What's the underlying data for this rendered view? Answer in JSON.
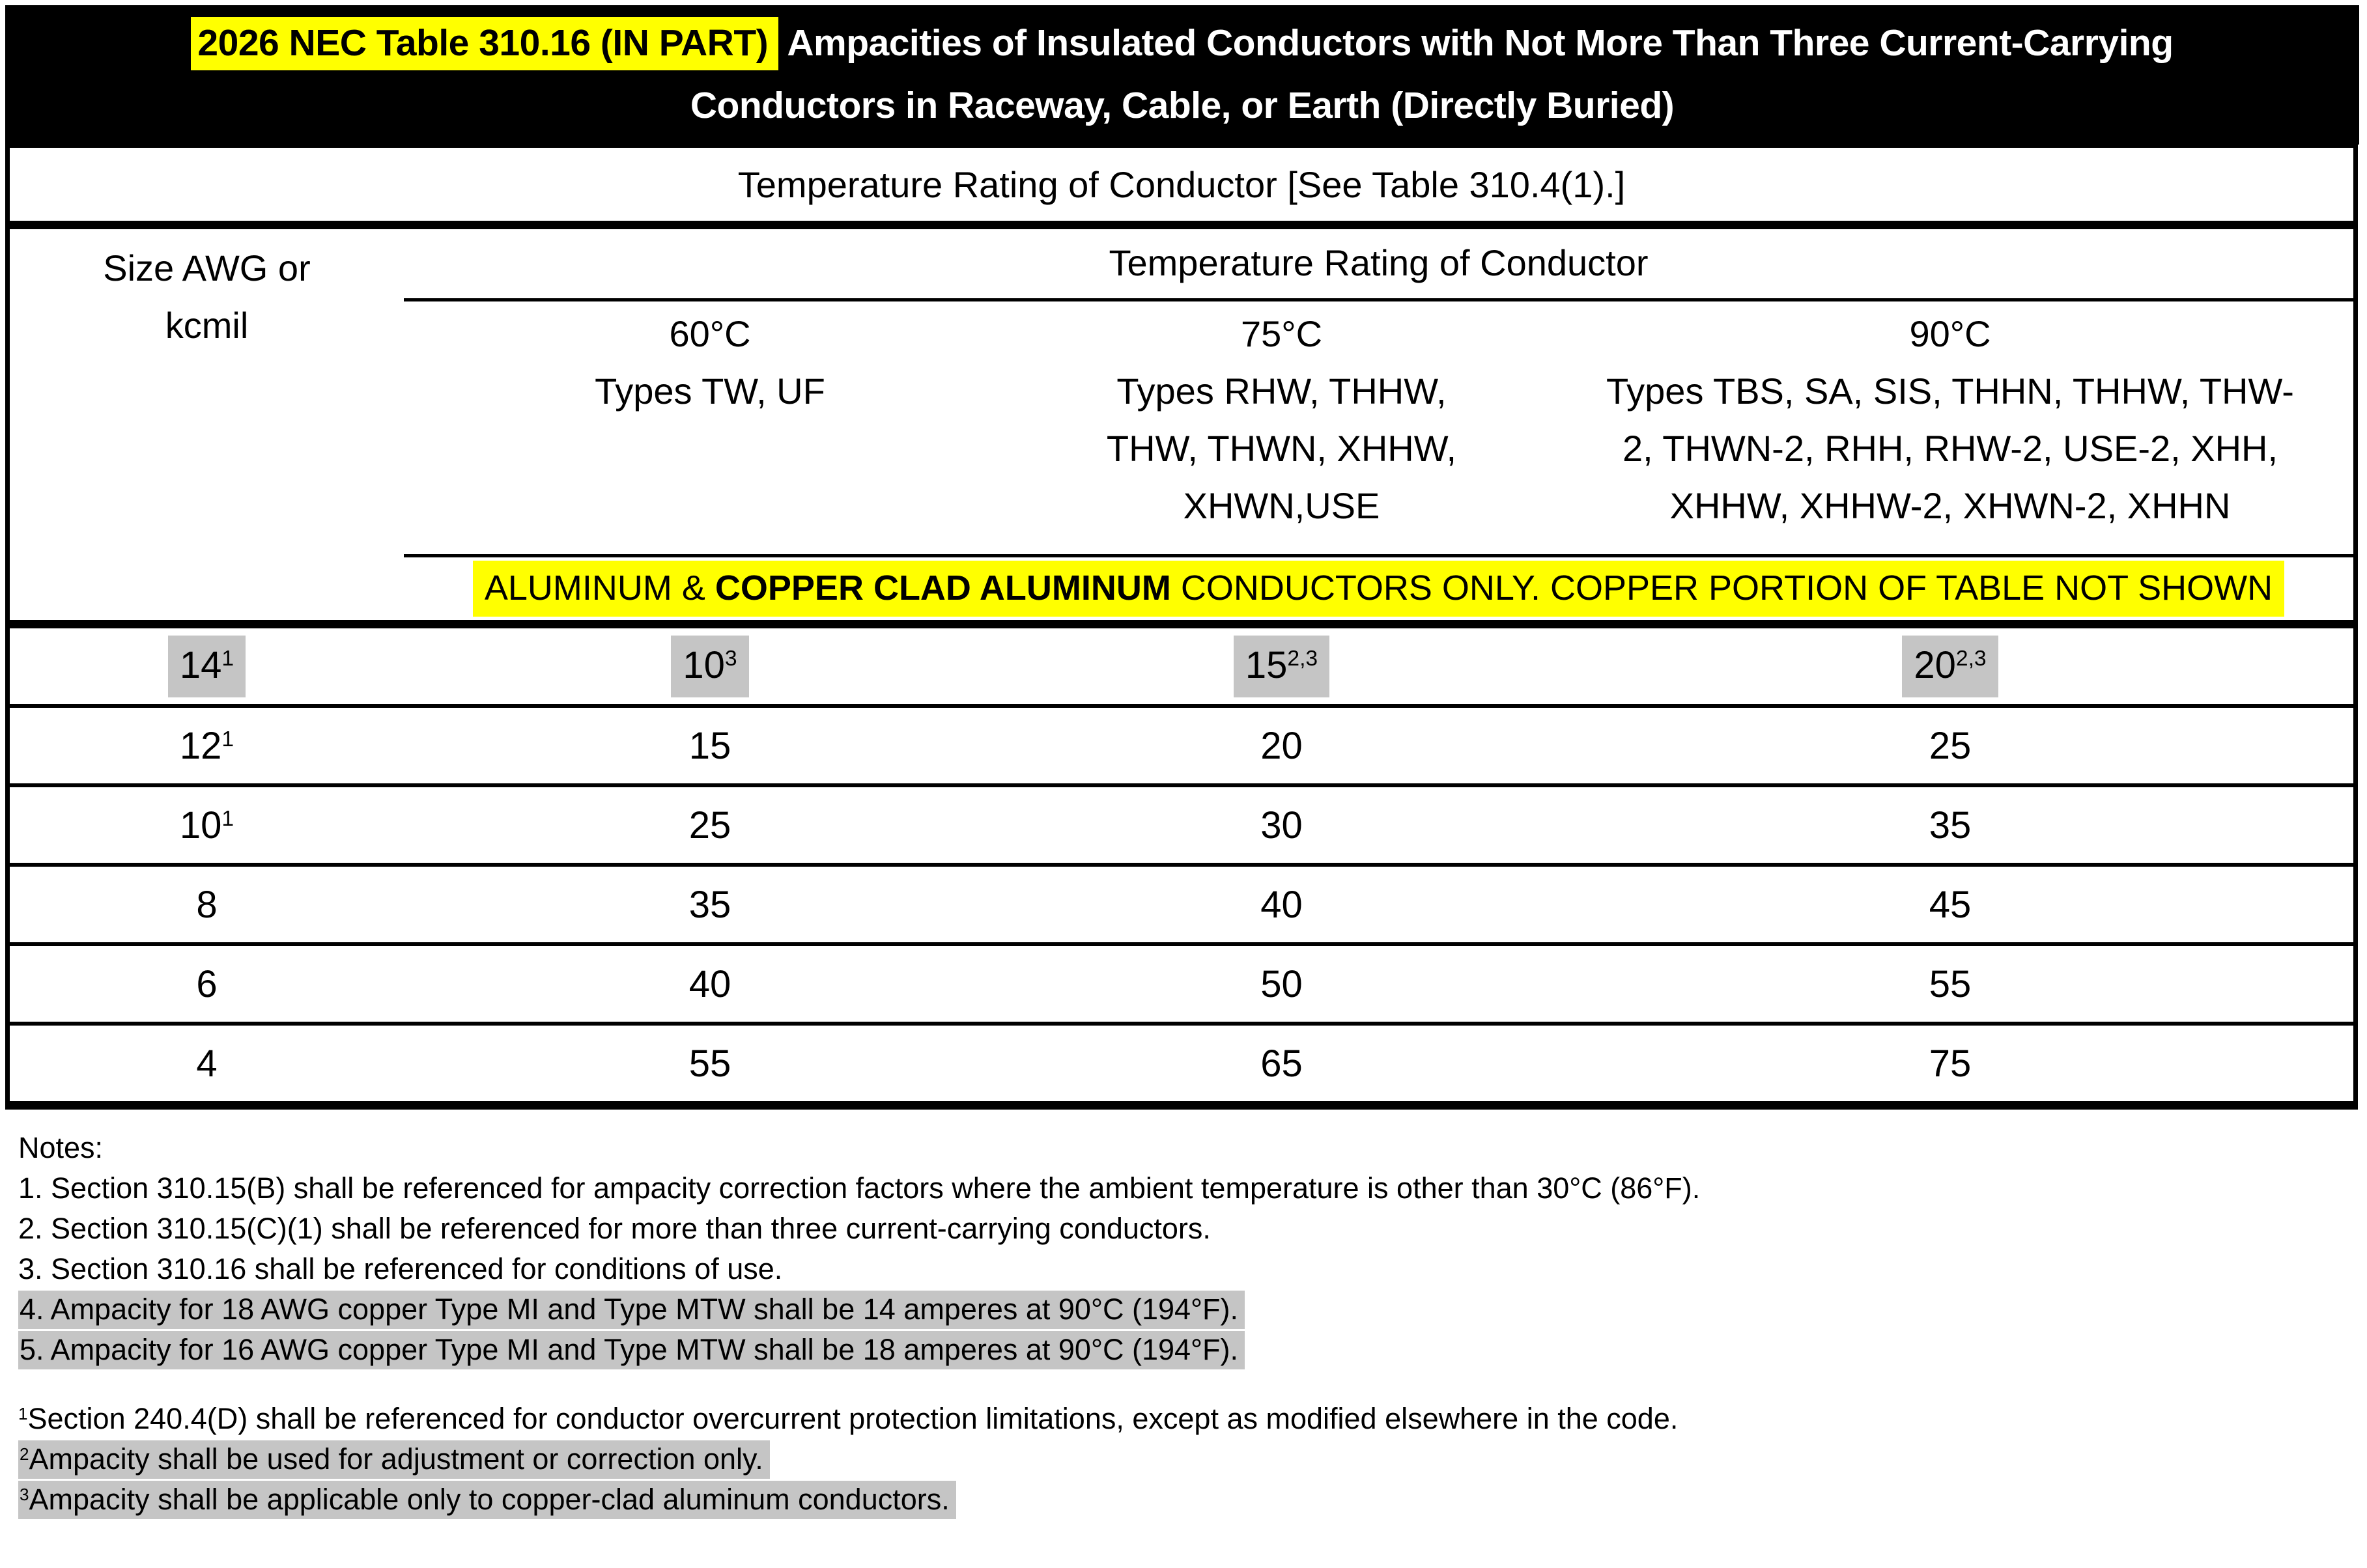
{
  "title": {
    "highlighted": "2026 NEC Table 310.16 (IN PART)",
    "line1_rest": " Ampacities of Insulated Conductors with Not More Than Three Current-Carrying",
    "line2": "Conductors in Raceway, Cable, or Earth (Directly Buried)"
  },
  "table": {
    "temp_rating_banner": "Temperature Rating of Conductor [See Table 310.4(1).]",
    "size_header_line1": "Size AWG or",
    "size_header_line2": "kcmil",
    "temp_rating_header": "Temperature Rating of Conductor",
    "columns": [
      {
        "temp": "60°C",
        "types1": "Types TW, UF",
        "types2": "",
        "types3": ""
      },
      {
        "temp": "75°C",
        "types1": "Types RHW, THHW,",
        "types2": "THW, THWN, XHHW,",
        "types3": "XHWN,USE"
      },
      {
        "temp": "90°C",
        "types1": "Types TBS, SA, SIS, THHN, THHW, THW-",
        "types2": "2, THWN-2, RHH, RHW-2, USE-2, XHH,",
        "types3": "XHHW, XHHW-2, XHWN-2, XHHN"
      }
    ],
    "aluminum_banner": {
      "pre": "ALUMINUM & ",
      "bold": "COPPER CLAD ALUMINUM",
      "post": " CONDUCTORS ONLY. COPPER PORTION OF TABLE NOT SHOWN"
    },
    "rows": [
      {
        "size": {
          "base": "14",
          "sup": "1"
        },
        "c60": {
          "base": "10",
          "sup": "3"
        },
        "c75": {
          "base": "15",
          "sup": "2,3"
        },
        "c90": {
          "base": "20",
          "sup": "2,3"
        },
        "highlighted": true
      },
      {
        "size": {
          "base": "12",
          "sup": "1"
        },
        "c60": {
          "base": "15",
          "sup": ""
        },
        "c75": {
          "base": "20",
          "sup": ""
        },
        "c90": {
          "base": "25",
          "sup": ""
        },
        "highlighted": false
      },
      {
        "size": {
          "base": "10",
          "sup": "1"
        },
        "c60": {
          "base": "25",
          "sup": ""
        },
        "c75": {
          "base": "30",
          "sup": ""
        },
        "c90": {
          "base": "35",
          "sup": ""
        },
        "highlighted": false
      },
      {
        "size": {
          "base": "8",
          "sup": ""
        },
        "c60": {
          "base": "35",
          "sup": ""
        },
        "c75": {
          "base": "40",
          "sup": ""
        },
        "c90": {
          "base": "45",
          "sup": ""
        },
        "highlighted": false
      },
      {
        "size": {
          "base": "6",
          "sup": ""
        },
        "c60": {
          "base": "40",
          "sup": ""
        },
        "c75": {
          "base": "50",
          "sup": ""
        },
        "c90": {
          "base": "55",
          "sup": ""
        },
        "highlighted": false
      },
      {
        "size": {
          "base": "4",
          "sup": ""
        },
        "c60": {
          "base": "55",
          "sup": ""
        },
        "c75": {
          "base": "65",
          "sup": ""
        },
        "c90": {
          "base": "75",
          "sup": ""
        },
        "highlighted": false
      }
    ]
  },
  "notes": {
    "label": "Notes:",
    "items": [
      {
        "text": "1. Section 310.15(B) shall be referenced for ampacity correction factors where the ambient temperature is other than 30°C (86°F).",
        "highlighted": false
      },
      {
        "text": "2. Section 310.15(C)(1) shall be referenced for more than three current-carrying conductors.",
        "highlighted": false
      },
      {
        "text": "3. Section 310.16 shall be referenced for conditions of use.",
        "highlighted": false
      },
      {
        "text": "4. Ampacity for 18 AWG copper Type MI and Type MTW shall be 14 amperes at 90°C (194°F).",
        "highlighted": true
      },
      {
        "text": "5. Ampacity for 16 AWG copper Type MI and Type MTW shall be 18 amperes at 90°C (194°F).",
        "highlighted": true
      }
    ]
  },
  "footnotes": [
    {
      "sup": "1",
      "text": "Section 240.4(D) shall be referenced for conductor overcurrent protection limitations, except as modified elsewhere in the code.",
      "highlighted": false
    },
    {
      "sup": "2",
      "text": "Ampacity shall be used for adjustment or correction only.",
      "highlighted": true
    },
    {
      "sup": "3",
      "text": "Ampacity shall be applicable only to copper-clad aluminum conductors.",
      "highlighted": true
    }
  ],
  "colors": {
    "highlight_yellow": "#ffff00",
    "highlight_gray": "#c5c5c5",
    "band_black": "#000000"
  }
}
